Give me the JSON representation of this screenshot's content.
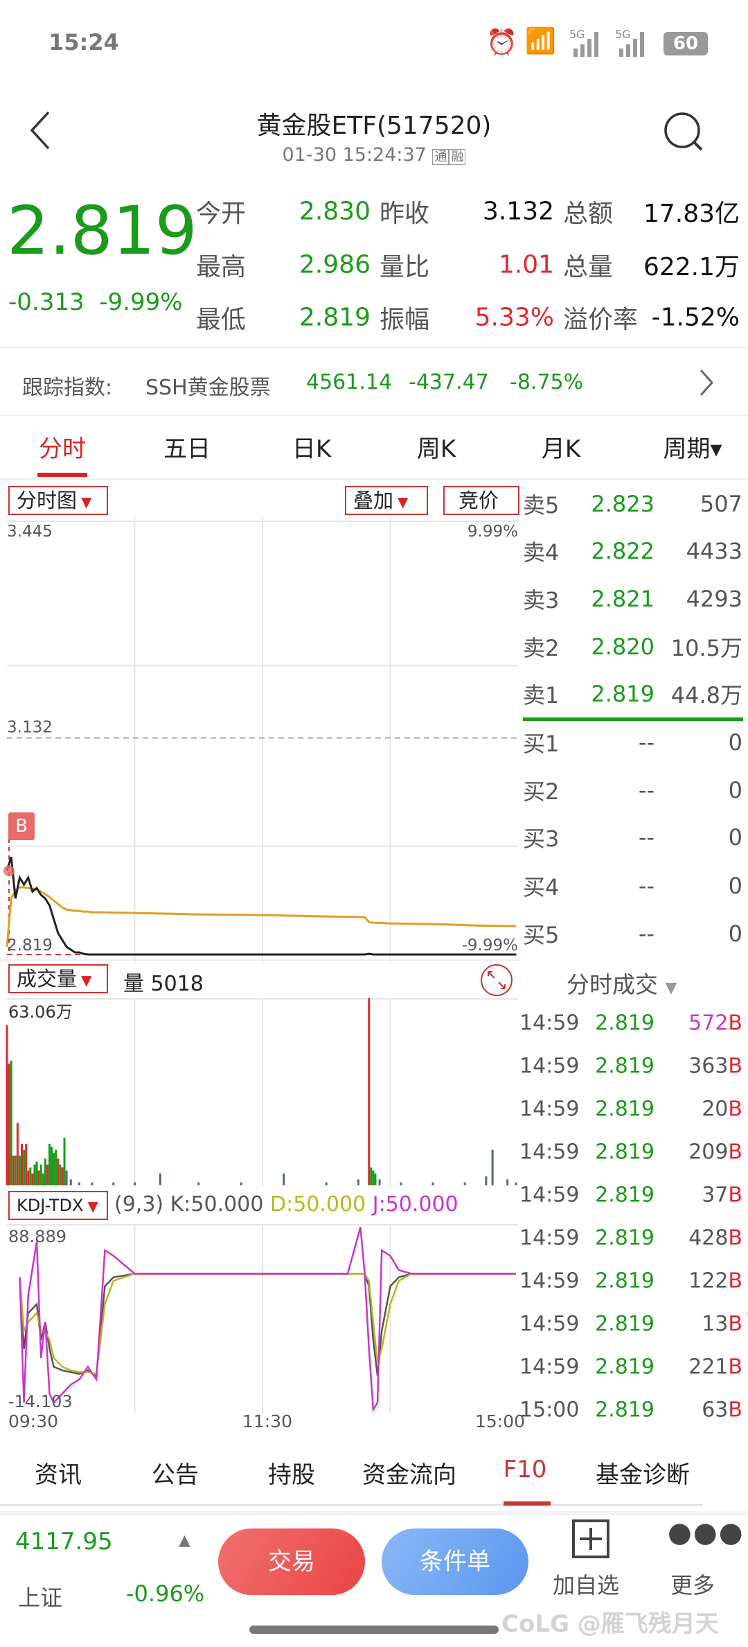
{
  "status_bar": {
    "time": "15:24",
    "battery": "60",
    "network": "5G"
  },
  "header": {
    "title": "黄金股ETF(517520)",
    "subtitle": "01-30 15:24:37",
    "badges": [
      "通",
      "融"
    ]
  },
  "quote": {
    "price": "2.819",
    "change": "-0.313",
    "change_pct": "-9.99%",
    "rows": [
      [
        {
          "label": "今开",
          "value": "2.830",
          "color": "green"
        },
        {
          "label": "昨收",
          "value": "3.132",
          "color": "black"
        },
        {
          "label": "总额",
          "value": "17.83亿",
          "color": "black"
        }
      ],
      [
        {
          "label": "最高",
          "value": "2.986",
          "color": "green"
        },
        {
          "label": "量比",
          "value": "1.01",
          "color": "red"
        },
        {
          "label": "总量",
          "value": "622.1万",
          "color": "black"
        }
      ],
      [
        {
          "label": "最低",
          "value": "2.819",
          "color": "green"
        },
        {
          "label": "振幅",
          "value": "5.33%",
          "color": "red"
        },
        {
          "label": "溢价率",
          "value": "-1.52%",
          "color": "black"
        }
      ]
    ]
  },
  "tracking": {
    "label": "跟踪指数:",
    "name": "SSH黄金股票",
    "value": "4561.14",
    "change": "-437.47",
    "pct": "-8.75%"
  },
  "period_tabs": [
    {
      "label": "分时",
      "active": true
    },
    {
      "label": "五日"
    },
    {
      "label": "日K"
    },
    {
      "label": "周K"
    },
    {
      "label": "月K"
    },
    {
      "label": "周期▾"
    }
  ],
  "chart_toolbar": {
    "type_select": "分时图",
    "overlay_select": "叠加",
    "auction": "竞价",
    "buy_marker": "B"
  },
  "chart_data": [
    {
      "type": "line",
      "ylim": [
        2.819,
        3.445
      ],
      "y_labels": {
        "top": "3.445",
        "mid": "3.132",
        "bottom": "2.819",
        "top_pct": "9.99%",
        "bottom_pct": "-9.99%"
      },
      "prev_close": 3.132,
      "x_minutes": [
        0,
        2,
        4,
        6,
        8,
        10,
        12,
        14,
        16,
        18,
        20,
        22,
        24,
        26,
        28,
        30,
        32,
        34,
        36,
        38,
        40,
        44,
        60,
        90,
        120,
        150,
        168,
        170,
        172,
        180,
        200,
        220,
        239
      ],
      "series": [
        {
          "color": "#222222",
          "values": [
            2.94,
            2.96,
            2.9,
            2.93,
            2.92,
            2.93,
            2.91,
            2.915,
            2.905,
            2.9,
            2.89,
            2.87,
            2.85,
            2.84,
            2.83,
            2.826,
            2.822,
            2.822,
            2.82,
            2.819,
            2.819,
            2.819,
            2.819,
            2.819,
            2.819,
            2.819,
            2.819,
            2.82,
            2.819,
            2.819,
            2.819,
            2.819,
            2.819
          ]
        },
        {
          "color": "#e0a020",
          "values": [
            2.83,
            2.9,
            2.912,
            2.916,
            2.916,
            2.915,
            2.914,
            2.913,
            2.91,
            2.906,
            2.902,
            2.897,
            2.892,
            2.887,
            2.884,
            2.883,
            2.882,
            2.882,
            2.881,
            2.881,
            2.88,
            2.88,
            2.879,
            2.877,
            2.876,
            2.874,
            2.873,
            2.866,
            2.865,
            2.864,
            2.863,
            2.861,
            2.86
          ]
        }
      ]
    },
    {
      "type": "bar",
      "label": "成交量",
      "header_value": "量 5018",
      "ymax_label": "63.06万",
      "ylim": [
        0,
        63.06
      ],
      "x_minutes": [
        0,
        1,
        2,
        3,
        4,
        5,
        6,
        7,
        8,
        9,
        10,
        11,
        12,
        13,
        14,
        15,
        16,
        17,
        18,
        19,
        20,
        21,
        22,
        23,
        24,
        25,
        26,
        27,
        28,
        30,
        34,
        40,
        50,
        60,
        72,
        90,
        110,
        130,
        150,
        165,
        170,
        171,
        172,
        173,
        175,
        185,
        200,
        215,
        225,
        228,
        235,
        239
      ],
      "values": [
        54,
        41,
        42,
        10,
        10,
        21,
        10,
        14,
        12,
        14,
        5,
        6,
        4,
        7,
        8,
        5,
        7,
        4,
        9,
        7,
        14,
        13,
        11,
        12,
        9,
        7,
        6,
        16,
        5,
        2,
        1,
        1,
        1,
        1,
        4,
        1,
        1,
        4,
        1,
        2,
        63.06,
        6,
        5,
        4,
        2,
        1,
        1,
        1,
        3,
        12,
        2,
        1
      ],
      "colors": [
        "r",
        "r",
        "g",
        "r",
        "g",
        "r",
        "g",
        "r",
        "g",
        "r",
        "r",
        "g",
        "r",
        "g",
        "g",
        "r",
        "g",
        "g",
        "g",
        "r",
        "g",
        "g",
        "g",
        "g",
        "r",
        "g",
        "r",
        "g",
        "gy",
        "gy",
        "gy",
        "gy",
        "gy",
        "gy",
        "gy",
        "gy",
        "gy",
        "gy",
        "gy",
        "gy",
        "r",
        "g",
        "g",
        "g",
        "gy",
        "gy",
        "gy",
        "gy",
        "gy",
        "gy",
        "gy",
        "gy"
      ]
    },
    {
      "type": "line",
      "label": "KDJ-TDX",
      "params": "(9,3)",
      "legend": {
        "k": "K:50.000",
        "d": "D:50.000",
        "j": "J:50.000"
      },
      "ylim": [
        -14.103,
        88.889
      ],
      "y_labels": {
        "top": "88.889",
        "bottom": "-14.103"
      },
      "x_labels": [
        "09:30",
        "11:30",
        "15:00"
      ],
      "x_minutes": [
        6,
        8,
        10,
        14,
        16,
        18,
        20,
        22,
        26,
        30,
        34,
        38,
        42,
        46,
        50,
        60,
        80,
        120,
        160,
        166,
        168,
        170,
        172,
        174,
        176,
        180,
        184,
        190,
        200,
        239
      ],
      "series": [
        {
          "name": "K",
          "color": "#555555",
          "values": [
            60,
            20,
            40,
            45,
            25,
            35,
            20,
            10,
            8,
            7,
            6,
            8,
            5,
            55,
            60,
            62,
            62,
            62,
            62,
            62,
            62,
            55,
            25,
            5,
            30,
            55,
            60,
            62,
            62,
            62
          ]
        },
        {
          "name": "D",
          "color": "#b8b820",
          "values": [
            60,
            30,
            35,
            40,
            30,
            30,
            25,
            15,
            10,
            8,
            7,
            7,
            6,
            45,
            58,
            62,
            62,
            62,
            62,
            62,
            62,
            58,
            35,
            12,
            20,
            45,
            58,
            62,
            62,
            62
          ]
        },
        {
          "name": "J",
          "color": "#cc33cc",
          "values": [
            60,
            -10,
            50,
            80,
            15,
            35,
            -5,
            -10,
            -5,
            0,
            3,
            10,
            3,
            75,
            72,
            62,
            62,
            62,
            62,
            88,
            62,
            20,
            -14,
            -10,
            75,
            72,
            64,
            62,
            62,
            62
          ]
        }
      ]
    }
  ],
  "order_book": {
    "asks": [
      {
        "label": "卖5",
        "price": "2.823",
        "vol": "507"
      },
      {
        "label": "卖4",
        "price": "2.822",
        "vol": "4433"
      },
      {
        "label": "卖3",
        "price": "2.821",
        "vol": "4293"
      },
      {
        "label": "卖2",
        "price": "2.820",
        "vol": "10.5万"
      },
      {
        "label": "卖1",
        "price": "2.819",
        "vol": "44.8万"
      }
    ],
    "bids": [
      {
        "label": "买1",
        "price": "--",
        "vol": "0"
      },
      {
        "label": "买2",
        "price": "--",
        "vol": "0"
      },
      {
        "label": "买3",
        "price": "--",
        "vol": "0"
      },
      {
        "label": "买4",
        "price": "--",
        "vol": "0"
      },
      {
        "label": "买5",
        "price": "--",
        "vol": "0"
      }
    ]
  },
  "trades": {
    "title": "分时成交",
    "rows": [
      {
        "time": "14:59",
        "price": "2.819",
        "vol": "572",
        "side": "B",
        "big": true
      },
      {
        "time": "14:59",
        "price": "2.819",
        "vol": "363",
        "side": "B"
      },
      {
        "time": "14:59",
        "price": "2.819",
        "vol": "20",
        "side": "B"
      },
      {
        "time": "14:59",
        "price": "2.819",
        "vol": "209",
        "side": "B"
      },
      {
        "time": "14:59",
        "price": "2.819",
        "vol": "37",
        "side": "B"
      },
      {
        "time": "14:59",
        "price": "2.819",
        "vol": "428",
        "side": "B"
      },
      {
        "time": "14:59",
        "price": "2.819",
        "vol": "122",
        "side": "B"
      },
      {
        "time": "14:59",
        "price": "2.819",
        "vol": "13",
        "side": "B"
      },
      {
        "time": "14:59",
        "price": "2.819",
        "vol": "221",
        "side": "B"
      },
      {
        "time": "15:00",
        "price": "2.819",
        "vol": "63",
        "side": "B"
      }
    ]
  },
  "bottom_tabs": [
    {
      "label": "资讯"
    },
    {
      "label": "公告"
    },
    {
      "label": "持股"
    },
    {
      "label": "资金流向"
    },
    {
      "label": "F10",
      "active": true
    },
    {
      "label": "基金诊断"
    }
  ],
  "footer": {
    "index_value": "4117.95",
    "index_name": "上证",
    "index_pct": "-0.96%",
    "trade": "交易",
    "condition": "条件单",
    "add_watch": "加自选",
    "more": "更多",
    "watermark": "CoLG @雁飞残月天"
  },
  "colors": {
    "green": "#1a9b1a",
    "red": "#e0282e",
    "magenta": "#cc33cc",
    "accent": "#d22"
  }
}
